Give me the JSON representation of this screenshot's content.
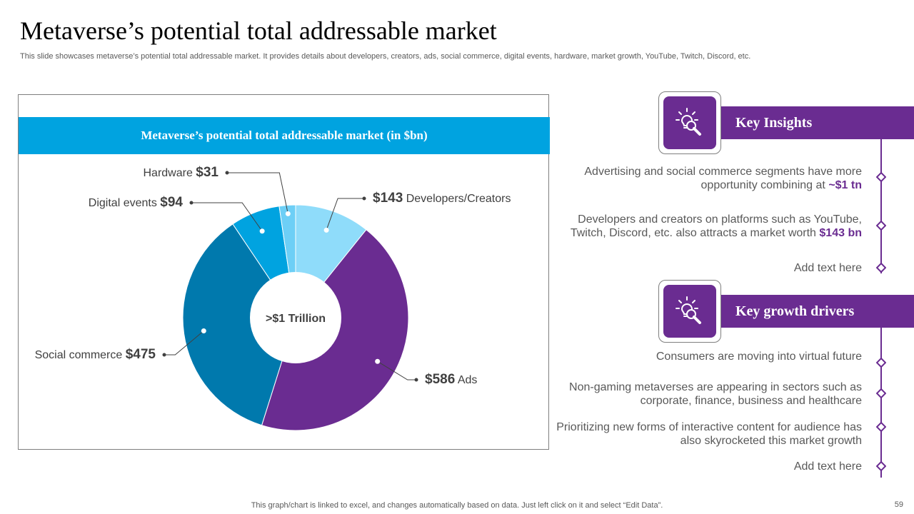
{
  "slide": {
    "title": "Metaverse’s potential total addressable market",
    "subtitle": "This slide showcases metaverse’s potential total addressable market. It provides details about developers, creators, ads, social commerce, digital events, hardware, market growth, YouTube, Twitch, Discord, etc.",
    "footer": "This graph/chart is linked to excel,  and changes automatically based on data. Just left click on it and select “Edit Data”.",
    "page_number": "59"
  },
  "chart_data": {
    "type": "pie",
    "title": "Metaverse’s potential total addressable market (in $bn)",
    "center_label": ">$1 Trillion",
    "slices": [
      {
        "label": "Developers/Creators",
        "value": 143,
        "value_text": "$143",
        "color": "#8fdcfa"
      },
      {
        "label": "Ads",
        "value": 586,
        "value_text": "$586",
        "color": "#6a2c91"
      },
      {
        "label": "Social commerce",
        "value": 475,
        "value_text": "$475",
        "color": "#0079ad"
      },
      {
        "label": "Digital events",
        "value": 94,
        "value_text": "$94",
        "color": "#00a3e0"
      },
      {
        "label": "Hardware",
        "value": 31,
        "value_text": "$31",
        "color": "#6dcff6"
      }
    ]
  },
  "key_insights": {
    "heading": "Key Insights",
    "items": [
      {
        "text": "Advertising and social commerce segments have more opportunity combining at ",
        "highlight": "~$1 tn"
      },
      {
        "text": "Developers and creators on platforms such as YouTube, Twitch, Discord, etc. also attracts a market worth ",
        "highlight": "$143 bn"
      },
      {
        "text": "Add text here",
        "highlight": ""
      }
    ]
  },
  "growth_drivers": {
    "heading": "Key growth drivers",
    "items": [
      {
        "text": "Consumers are moving into virtual future"
      },
      {
        "text": "Non-gaming metaverses are appearing in sectors such as corporate, finance, business and healthcare"
      },
      {
        "text": "Prioritizing new forms of interactive content for audience has also skyrocketed this market growth"
      },
      {
        "text": "Add text here"
      }
    ]
  },
  "colors": {
    "purple": "#6a2c91",
    "blue": "#00a3e0"
  },
  "icons": {
    "insights": "lightbulb-magnifier-icon",
    "drivers": "lightbulb-magnifier-icon"
  }
}
